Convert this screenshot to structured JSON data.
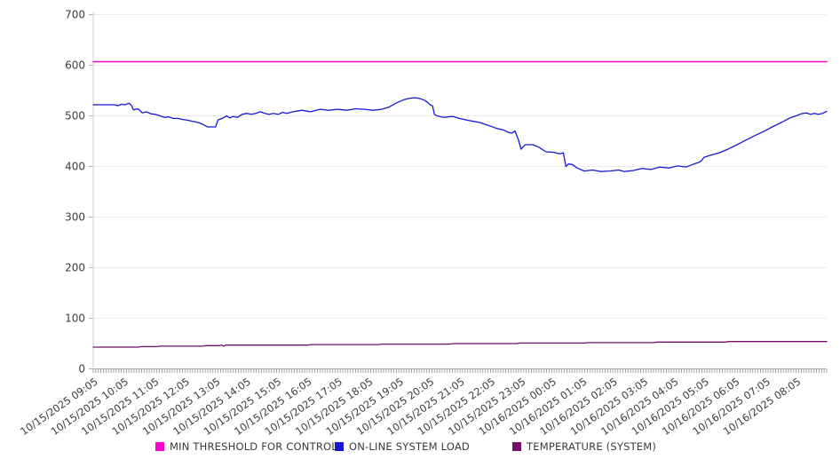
{
  "chart_data": {
    "type": "line",
    "title": "",
    "grid": "horizontal",
    "legend_position": "bottom",
    "x_axis": {
      "unit": "minutes since first sample (10/15/2025 09:05), samples every 5 min",
      "total_minutes": 1440,
      "minor_tick_every_minutes": 5,
      "label_every_minutes": 60,
      "label_rotation_deg": -35,
      "labels": [
        "10/15/2025 09:05",
        "10/15/2025 10:05",
        "10/15/2025 11:05",
        "10/15/2025 12:05",
        "10/15/2025 13:05",
        "10/15/2025 14:05",
        "10/15/2025 15:05",
        "10/15/2025 16:05",
        "10/15/2025 17:05",
        "10/15/2025 18:05",
        "10/15/2025 19:05",
        "10/15/2025 20:05",
        "10/15/2025 21:05",
        "10/15/2025 22:05",
        "10/15/2025 23:05",
        "10/16/2025 00:05",
        "10/16/2025 01:05",
        "10/16/2025 02:05",
        "10/16/2025 03:05",
        "10/16/2025 04:05",
        "10/16/2025 05:05",
        "10/16/2025 06:05",
        "10/16/2025 07:05",
        "10/16/2025 08:05"
      ]
    },
    "y_axis": {
      "min": 0,
      "max": 700,
      "tick_step": 100,
      "ticks": [
        0,
        100,
        200,
        300,
        400,
        500,
        600,
        700
      ]
    },
    "series": [
      {
        "id": "min-threshold-for-control",
        "name": "MIN THRESHOLD FOR CONTROL",
        "color": "#ff00cc",
        "stroke_width": 1.6,
        "points": [
          [
            0,
            607
          ],
          [
            1440,
            607
          ]
        ]
      },
      {
        "id": "online-system-load",
        "name": "ON-LINE SYSTEM LOAD",
        "color": "#1717d6",
        "stroke_width": 1.3,
        "points": [
          [
            0,
            522
          ],
          [
            20,
            522
          ],
          [
            42,
            522
          ],
          [
            48,
            520
          ],
          [
            56,
            523
          ],
          [
            62,
            522
          ],
          [
            70,
            525
          ],
          [
            75,
            521
          ],
          [
            79,
            512
          ],
          [
            88,
            514
          ],
          [
            96,
            506
          ],
          [
            105,
            508
          ],
          [
            113,
            504
          ],
          [
            122,
            503
          ],
          [
            131,
            500
          ],
          [
            140,
            497
          ],
          [
            148,
            498
          ],
          [
            157,
            495
          ],
          [
            166,
            495
          ],
          [
            175,
            493
          ],
          [
            183,
            492
          ],
          [
            192,
            490
          ],
          [
            201,
            488
          ],
          [
            209,
            486
          ],
          [
            218,
            482
          ],
          [
            224,
            478
          ],
          [
            240,
            478
          ],
          [
            245,
            492
          ],
          [
            253,
            495
          ],
          [
            262,
            500
          ],
          [
            268,
            496
          ],
          [
            275,
            499
          ],
          [
            283,
            497
          ],
          [
            292,
            503
          ],
          [
            302,
            505
          ],
          [
            310,
            503
          ],
          [
            319,
            505
          ],
          [
            328,
            508
          ],
          [
            337,
            505
          ],
          [
            345,
            503
          ],
          [
            354,
            505
          ],
          [
            363,
            503
          ],
          [
            372,
            507
          ],
          [
            380,
            505
          ],
          [
            392,
            508
          ],
          [
            410,
            511
          ],
          [
            427,
            508
          ],
          [
            445,
            513
          ],
          [
            462,
            511
          ],
          [
            480,
            513
          ],
          [
            497,
            511
          ],
          [
            515,
            514
          ],
          [
            532,
            513
          ],
          [
            550,
            511
          ],
          [
            566,
            513
          ],
          [
            580,
            517
          ],
          [
            596,
            526
          ],
          [
            610,
            532
          ],
          [
            622,
            535
          ],
          [
            632,
            536
          ],
          [
            642,
            534
          ],
          [
            650,
            531
          ],
          [
            656,
            527
          ],
          [
            661,
            522
          ],
          [
            666,
            520
          ],
          [
            670,
            503
          ],
          [
            675,
            500
          ],
          [
            689,
            497
          ],
          [
            706,
            499
          ],
          [
            719,
            495
          ],
          [
            736,
            491
          ],
          [
            748,
            489
          ],
          [
            758,
            487
          ],
          [
            776,
            481
          ],
          [
            793,
            475
          ],
          [
            806,
            472
          ],
          [
            816,
            467
          ],
          [
            822,
            466
          ],
          [
            828,
            470
          ],
          [
            835,
            452
          ],
          [
            840,
            434
          ],
          [
            848,
            443
          ],
          [
            863,
            443
          ],
          [
            875,
            438
          ],
          [
            889,
            429
          ],
          [
            903,
            428
          ],
          [
            916,
            425
          ],
          [
            923,
            427
          ],
          [
            928,
            400
          ],
          [
            933,
            405
          ],
          [
            940,
            404
          ],
          [
            950,
            397
          ],
          [
            964,
            391
          ],
          [
            980,
            393
          ],
          [
            997,
            390
          ],
          [
            1014,
            391
          ],
          [
            1032,
            393
          ],
          [
            1042,
            390
          ],
          [
            1060,
            392
          ],
          [
            1077,
            396
          ],
          [
            1095,
            394
          ],
          [
            1112,
            399
          ],
          [
            1130,
            397
          ],
          [
            1147,
            401
          ],
          [
            1164,
            399
          ],
          [
            1177,
            404
          ],
          [
            1189,
            408
          ],
          [
            1194,
            411
          ],
          [
            1199,
            418
          ],
          [
            1211,
            422
          ],
          [
            1229,
            427
          ],
          [
            1246,
            434
          ],
          [
            1264,
            443
          ],
          [
            1281,
            452
          ],
          [
            1299,
            461
          ],
          [
            1316,
            469
          ],
          [
            1333,
            478
          ],
          [
            1351,
            487
          ],
          [
            1368,
            496
          ],
          [
            1380,
            500
          ],
          [
            1390,
            504
          ],
          [
            1400,
            506
          ],
          [
            1408,
            503
          ],
          [
            1416,
            505
          ],
          [
            1424,
            503
          ],
          [
            1432,
            505
          ],
          [
            1440,
            509
          ]
        ]
      },
      {
        "id": "temperature-system",
        "name": "TEMPERATURE (SYSTEM)",
        "color": "#730f68",
        "stroke_width": 1.3,
        "points": [
          [
            0,
            43
          ],
          [
            88,
            43
          ],
          [
            95,
            44
          ],
          [
            125,
            44
          ],
          [
            131,
            45
          ],
          [
            215,
            45
          ],
          [
            222,
            46
          ],
          [
            247,
            46
          ],
          [
            252,
            47
          ],
          [
            256,
            45
          ],
          [
            260,
            47
          ],
          [
            420,
            47
          ],
          [
            428,
            48
          ],
          [
            560,
            48
          ],
          [
            568,
            49
          ],
          [
            700,
            49
          ],
          [
            708,
            50
          ],
          [
            830,
            50
          ],
          [
            838,
            51
          ],
          [
            965,
            51
          ],
          [
            973,
            52
          ],
          [
            1100,
            52
          ],
          [
            1108,
            53
          ],
          [
            1240,
            53
          ],
          [
            1248,
            54
          ],
          [
            1440,
            54
          ]
        ]
      }
    ]
  }
}
